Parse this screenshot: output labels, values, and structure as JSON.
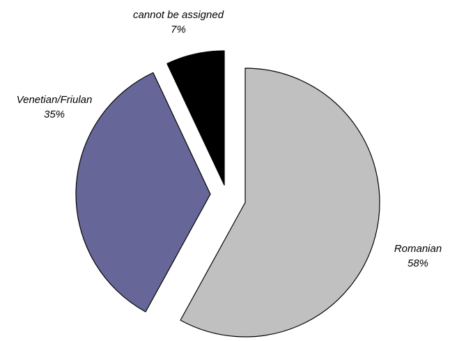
{
  "chart_data": {
    "type": "pie",
    "title": "",
    "start_angle_deg": 0,
    "direction": "clockwise",
    "exploded": true,
    "slices": [
      {
        "label": "Romanian",
        "percent_label": "58%",
        "value": 58,
        "color": "#c0c0c0"
      },
      {
        "label": "Venetian/Friulan",
        "percent_label": "35%",
        "value": 35,
        "color": "#666699"
      },
      {
        "label": "cannot be assigned",
        "percent_label": "7%",
        "value": 7,
        "color": "#000000"
      }
    ],
    "stroke_color": "#000000"
  }
}
